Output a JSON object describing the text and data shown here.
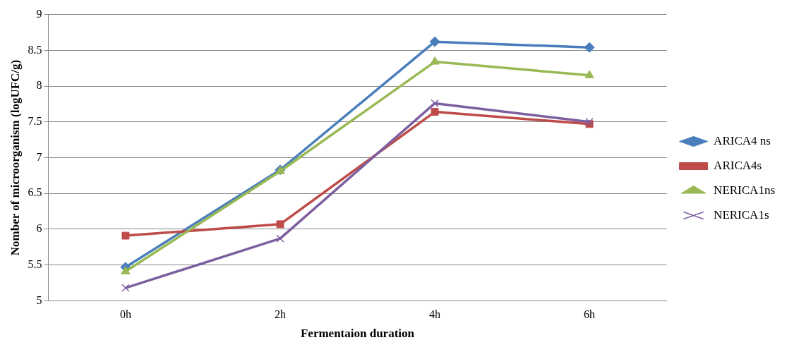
{
  "chart_data": {
    "type": "line",
    "xlabel": "Fermentaion duration",
    "ylabel": "Nomber of microorganism (logUFC/g)",
    "categories": [
      "0h",
      "2h",
      "4h",
      "6h"
    ],
    "series": [
      {
        "name": "ARICA4 ns",
        "color": "#4a7ebb",
        "marker": "diamond",
        "values": [
          5.47,
          6.83,
          8.62,
          8.54
        ]
      },
      {
        "name": "ARICA4s",
        "color": "#be4b48",
        "marker": "square",
        "values": [
          5.91,
          6.07,
          7.64,
          7.47
        ]
      },
      {
        "name": "NERICA1ns",
        "color": "#98b954",
        "marker": "triangle",
        "values": [
          5.41,
          6.81,
          8.34,
          8.15
        ]
      },
      {
        "name": "NERICA1s",
        "color": "#7d5fa0",
        "marker": "cross",
        "values": [
          5.18,
          5.87,
          7.76,
          7.5
        ]
      }
    ],
    "ylim": [
      5,
      9
    ],
    "yticks": [
      5,
      5.5,
      6,
      6.5,
      7,
      7.5,
      8,
      8.5,
      9
    ],
    "grid": "y",
    "legend": "right"
  }
}
